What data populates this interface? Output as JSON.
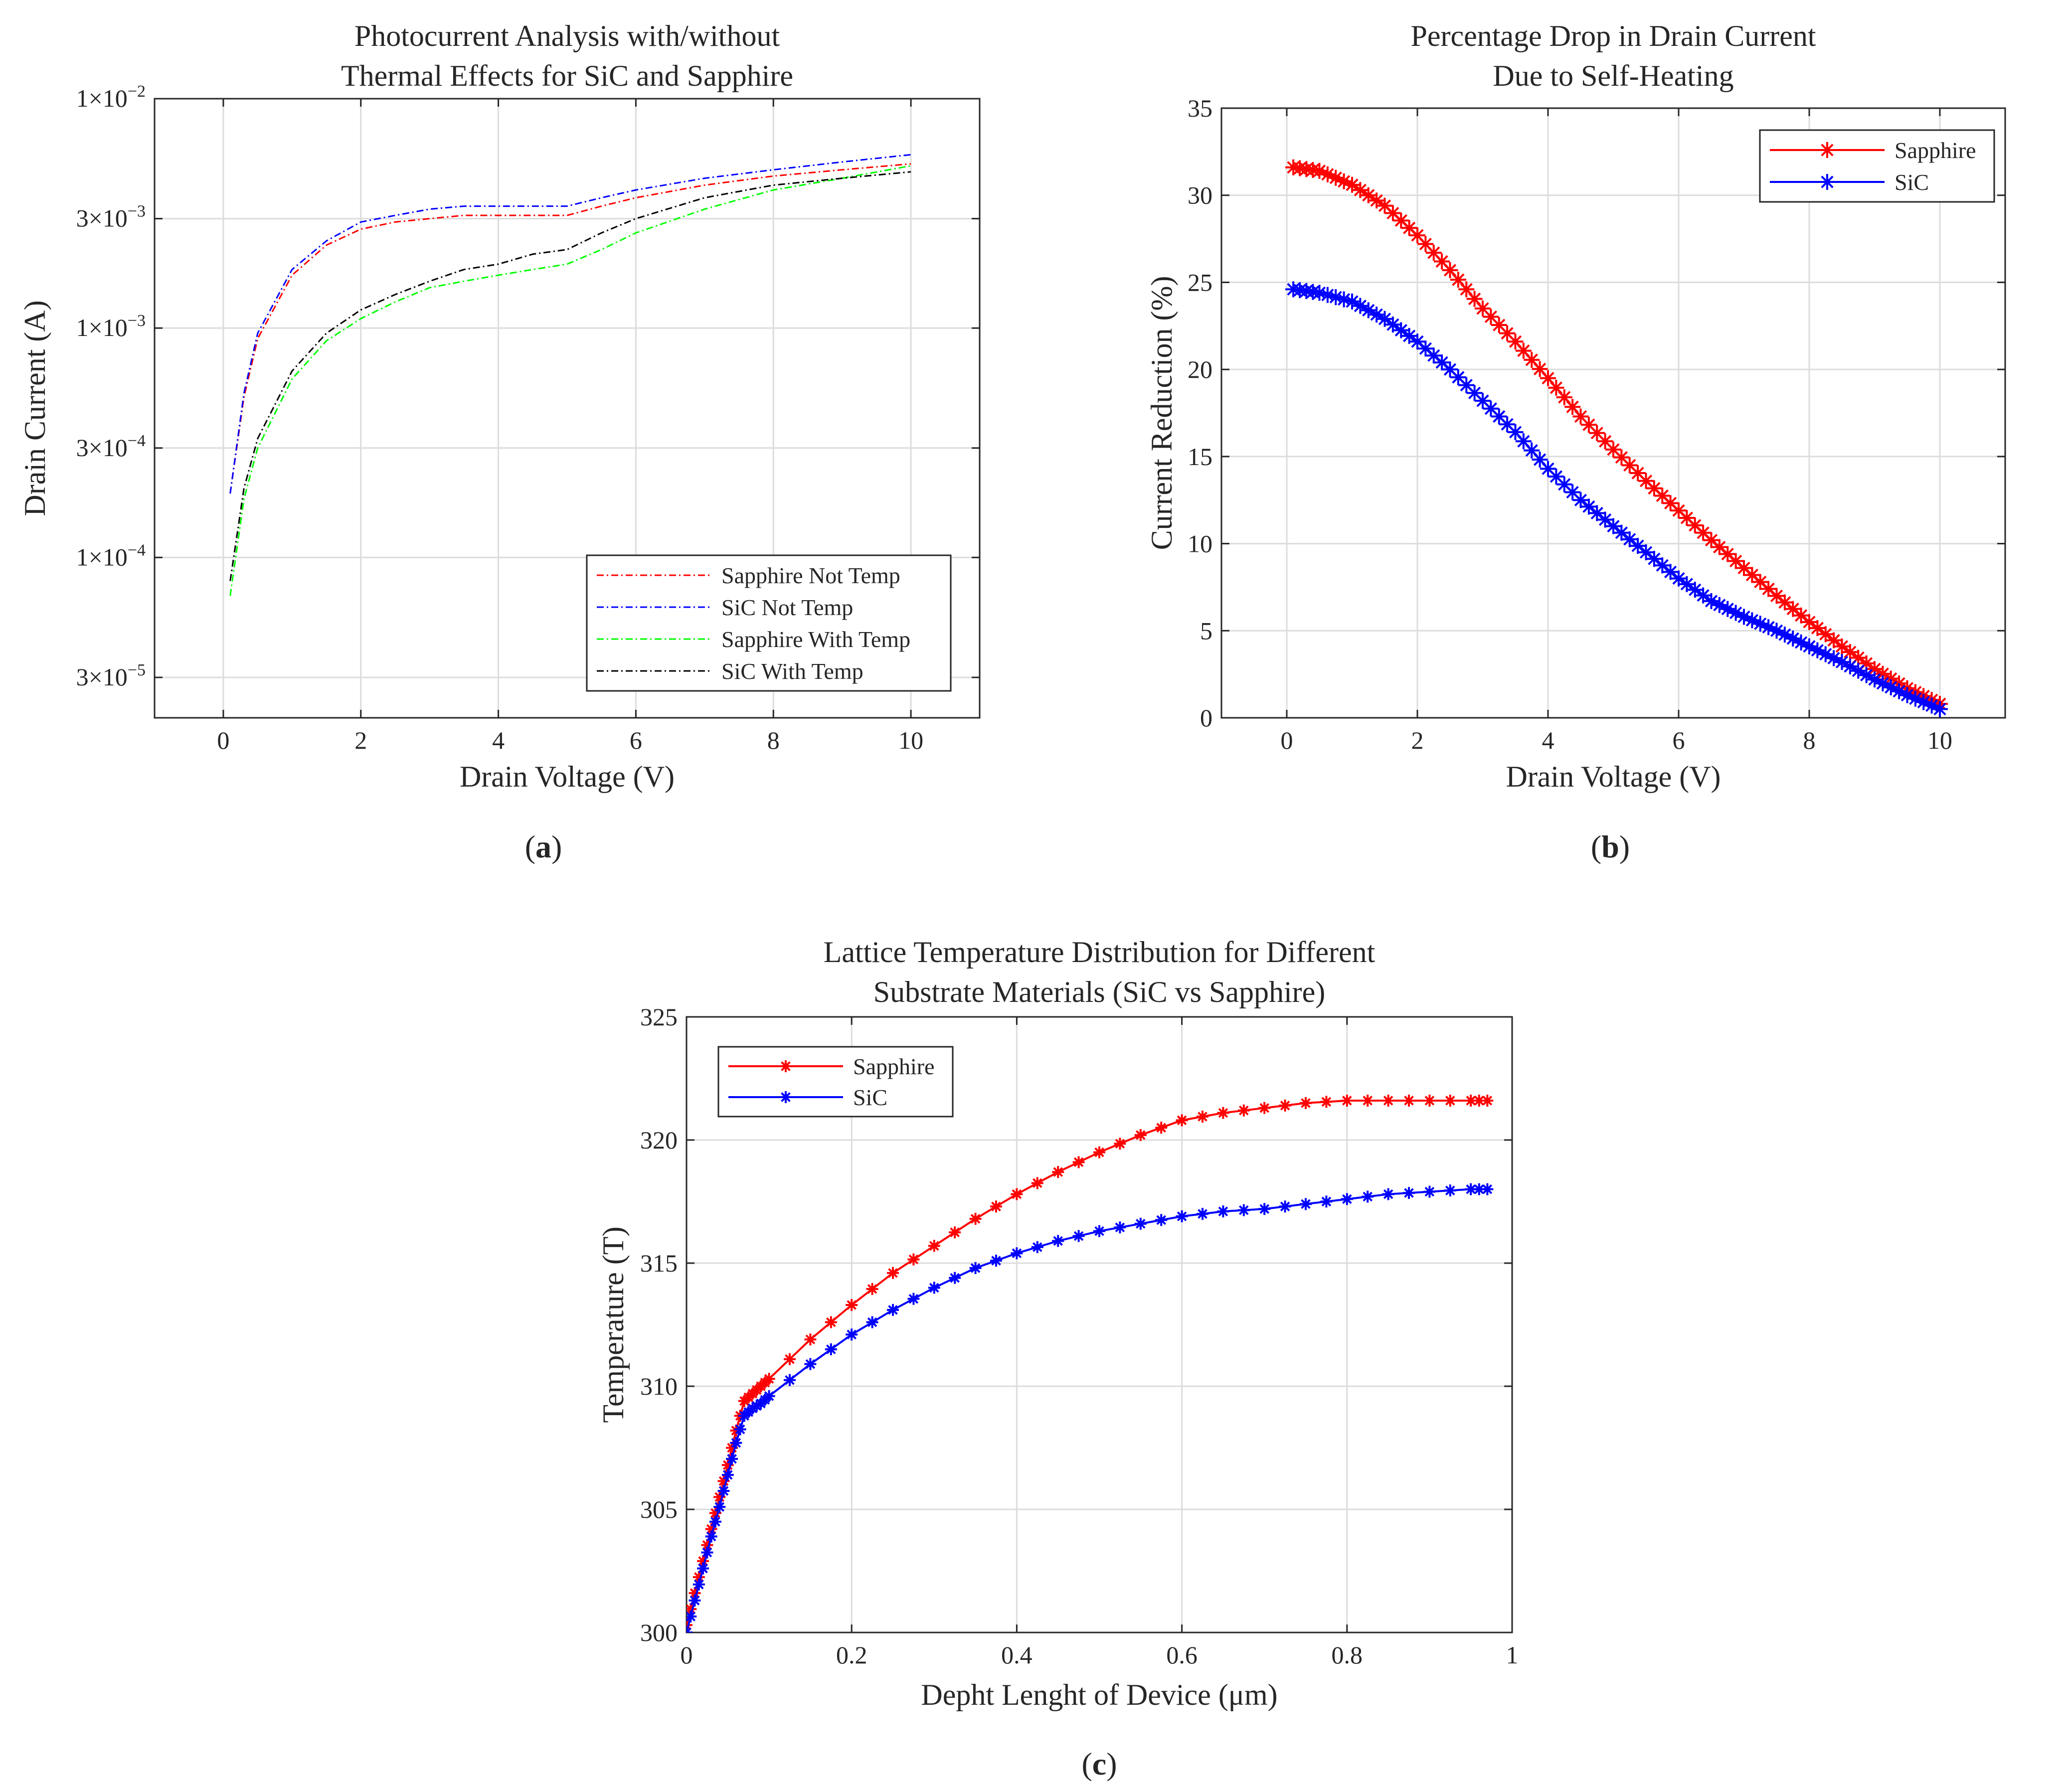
{
  "chart_data": [
    {
      "id": "a",
      "type": "line",
      "panel_label": "a",
      "title_lines": [
        "Photocurrent Analysis with/without",
        "Thermal Effects for SiC and Sapphire"
      ],
      "xlabel": "Drain Voltage (V)",
      "ylabel": "Drain Current (A)",
      "xlim": [
        -1,
        11
      ],
      "ylim": [
        2e-05,
        0.01
      ],
      "yscale": "log",
      "xticks": [
        0,
        2,
        4,
        6,
        8,
        10
      ],
      "xtick_labels": [
        "0",
        "2",
        "4",
        "6",
        "8",
        "10"
      ],
      "yticks": [
        3e-05,
        0.0001,
        0.0003,
        0.001,
        0.003,
        0.01
      ],
      "ytick_labels": [
        {
          "mant": "3×10",
          "exp": "−5"
        },
        {
          "mant": "1×10",
          "exp": "−4"
        },
        {
          "mant": "3×10",
          "exp": "−4"
        },
        {
          "mant": "1×10",
          "exp": "−3"
        },
        {
          "mant": "3×10",
          "exp": "−3"
        },
        {
          "mant": "1×10",
          "exp": "−2"
        }
      ],
      "grid": true,
      "legend_position": "lower-right",
      "series": [
        {
          "name": "Sapphire Not Temp",
          "color": "#ff0000",
          "style": "dashdot",
          "x": [
            0.1,
            0.3,
            0.5,
            1,
            1.5,
            2,
            2.5,
            3,
            3.5,
            4,
            4.5,
            5,
            5.5,
            6,
            7,
            8,
            9,
            10
          ],
          "y": [
            0.00019,
            0.0005,
            0.0009,
            0.0017,
            0.0023,
            0.0027,
            0.0029,
            0.003,
            0.0031,
            0.0031,
            0.0031,
            0.0031,
            0.0034,
            0.0037,
            0.0042,
            0.0046,
            0.0049,
            0.0052
          ]
        },
        {
          "name": "SiC Not Temp",
          "color": "#0000ff",
          "style": "dashdot",
          "x": [
            0.1,
            0.3,
            0.5,
            1,
            1.5,
            2,
            2.5,
            3,
            3.5,
            4,
            4.5,
            5,
            5.5,
            6,
            7,
            8,
            9,
            10
          ],
          "y": [
            0.00019,
            0.00052,
            0.00095,
            0.0018,
            0.0024,
            0.0029,
            0.0031,
            0.0033,
            0.0034,
            0.0034,
            0.0034,
            0.0034,
            0.0037,
            0.004,
            0.0045,
            0.0049,
            0.0053,
            0.0057
          ]
        },
        {
          "name": "Sapphire With Temp",
          "color": "#00ff00",
          "style": "dashdot",
          "x": [
            0.1,
            0.3,
            0.5,
            1,
            1.5,
            2,
            2.5,
            3,
            3.5,
            4,
            4.5,
            5,
            5.5,
            6,
            7,
            8,
            9,
            10
          ],
          "y": [
            6.8e-05,
            0.00018,
            0.0003,
            0.0006,
            0.00088,
            0.0011,
            0.0013,
            0.0015,
            0.0016,
            0.0017,
            0.0018,
            0.0019,
            0.0022,
            0.0026,
            0.0033,
            0.004,
            0.0045,
            0.0051
          ]
        },
        {
          "name": "SiC With Temp",
          "color": "#000000",
          "style": "dashdot",
          "x": [
            0.1,
            0.3,
            0.5,
            1,
            1.5,
            2,
            2.5,
            3,
            3.5,
            4,
            4.5,
            5,
            5.5,
            6,
            7,
            8,
            9,
            10
          ],
          "y": [
            7.9e-05,
            0.0002,
            0.00033,
            0.00065,
            0.00095,
            0.0012,
            0.0014,
            0.0016,
            0.0018,
            0.0019,
            0.0021,
            0.0022,
            0.0026,
            0.003,
            0.0037,
            0.0042,
            0.0045,
            0.0048
          ]
        }
      ]
    },
    {
      "id": "b",
      "type": "line",
      "panel_label": "b",
      "title_lines": [
        "Percentage Drop in Drain Current",
        "Due to Self-Heating"
      ],
      "xlabel": "Drain Voltage (V)",
      "ylabel": "Current Reduction (%)",
      "xlim": [
        -1,
        11
      ],
      "ylim": [
        0,
        35
      ],
      "xticks": [
        0,
        2,
        4,
        6,
        8,
        10
      ],
      "xtick_labels": [
        "0",
        "2",
        "4",
        "6",
        "8",
        "10"
      ],
      "yticks": [
        0,
        5,
        10,
        15,
        20,
        25,
        30,
        35
      ],
      "ytick_labels": [
        "0",
        "5",
        "10",
        "15",
        "20",
        "25",
        "30",
        "35"
      ],
      "grid": true,
      "legend_position": "top-right",
      "marker": "asterisk",
      "series": [
        {
          "name": "Sapphire",
          "color": "#ff0000",
          "x": [
            0.1,
            0.5,
            1,
            1.5,
            2,
            2.5,
            3,
            3.5,
            4,
            4.5,
            5,
            5.5,
            6,
            6.5,
            7,
            7.5,
            8,
            8.5,
            9,
            9.5,
            10
          ],
          "y": [
            31.6,
            31.4,
            30.6,
            29.4,
            27.7,
            25.7,
            23.5,
            21.6,
            19.5,
            17.3,
            15.4,
            13.6,
            11.9,
            10.2,
            8.6,
            7.0,
            5.5,
            4.1,
            2.8,
            1.7,
            0.8
          ]
        },
        {
          "name": "SiC",
          "color": "#0000ff",
          "x": [
            0.1,
            0.5,
            1,
            1.5,
            2,
            2.5,
            3,
            3.5,
            4,
            4.5,
            5,
            5.5,
            6,
            6.5,
            7,
            7.5,
            8,
            8.5,
            9,
            9.5,
            10
          ],
          "y": [
            24.6,
            24.4,
            23.9,
            22.9,
            21.6,
            20.0,
            18.2,
            16.4,
            14.3,
            12.5,
            11.0,
            9.5,
            8.0,
            6.7,
            5.8,
            5.0,
            4.1,
            3.2,
            2.2,
            1.3,
            0.5
          ]
        }
      ]
    },
    {
      "id": "c",
      "type": "line",
      "panel_label": "c",
      "title_lines": [
        "Lattice Temperature Distribution for Different",
        "Substrate Materials (SiC vs Sapphire)"
      ],
      "xlabel": "Depht Lenght of Device (μm)",
      "ylabel": "Temperature (T)",
      "xlim": [
        0,
        1
      ],
      "ylim": [
        300,
        325
      ],
      "xticks": [
        0,
        0.2,
        0.4,
        0.6,
        0.8,
        1
      ],
      "xtick_labels": [
        "0",
        "0.2",
        "0.4",
        "0.6",
        "0.8",
        "1"
      ],
      "yticks": [
        300,
        305,
        310,
        315,
        320,
        325
      ],
      "ytick_labels": [
        "300",
        "305",
        "310",
        "315",
        "320",
        "325"
      ],
      "grid": true,
      "legend_position": "top-left",
      "marker": "asterisk",
      "series": [
        {
          "name": "Sapphire",
          "color": "#ff0000",
          "x": [
            0,
            0.01,
            0.02,
            0.03,
            0.04,
            0.05,
            0.06,
            0.07,
            0.08,
            0.09,
            0.1,
            0.15,
            0.2,
            0.25,
            0.3,
            0.35,
            0.4,
            0.45,
            0.5,
            0.55,
            0.6,
            0.65,
            0.7,
            0.75,
            0.8,
            0.85,
            0.9,
            0.95,
            0.97
          ],
          "y": [
            300.3,
            301.6,
            302.9,
            304.2,
            305.5,
            306.8,
            308.2,
            309.4,
            309.7,
            310.0,
            310.3,
            311.9,
            313.3,
            314.6,
            315.7,
            316.8,
            317.8,
            318.7,
            319.5,
            320.2,
            320.8,
            321.1,
            321.3,
            321.5,
            321.6,
            321.6,
            321.6,
            321.6,
            321.6
          ]
        },
        {
          "name": "SiC",
          "color": "#0000ff",
          "x": [
            0,
            0.01,
            0.02,
            0.03,
            0.04,
            0.05,
            0.06,
            0.07,
            0.08,
            0.09,
            0.1,
            0.15,
            0.2,
            0.25,
            0.3,
            0.35,
            0.4,
            0.45,
            0.5,
            0.55,
            0.6,
            0.65,
            0.7,
            0.75,
            0.8,
            0.85,
            0.9,
            0.95,
            0.97
          ],
          "y": [
            300.0,
            301.3,
            302.6,
            303.9,
            305.1,
            306.4,
            307.7,
            308.8,
            309.1,
            309.3,
            309.6,
            310.9,
            312.1,
            313.1,
            314.0,
            314.8,
            315.4,
            315.9,
            316.3,
            316.6,
            316.9,
            317.1,
            317.2,
            317.4,
            317.6,
            317.8,
            317.9,
            318.0,
            318.0
          ]
        }
      ]
    }
  ]
}
